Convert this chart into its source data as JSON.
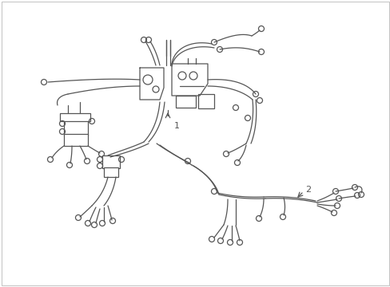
{
  "background_color": "#ffffff",
  "line_color": "#555555",
  "line_width": 0.9,
  "label_1": "1",
  "label_2": "2",
  "fig_width": 4.89,
  "fig_height": 3.6,
  "dpi": 100,
  "border_color": "#aaaaaa",
  "annotation_color": "#333333"
}
